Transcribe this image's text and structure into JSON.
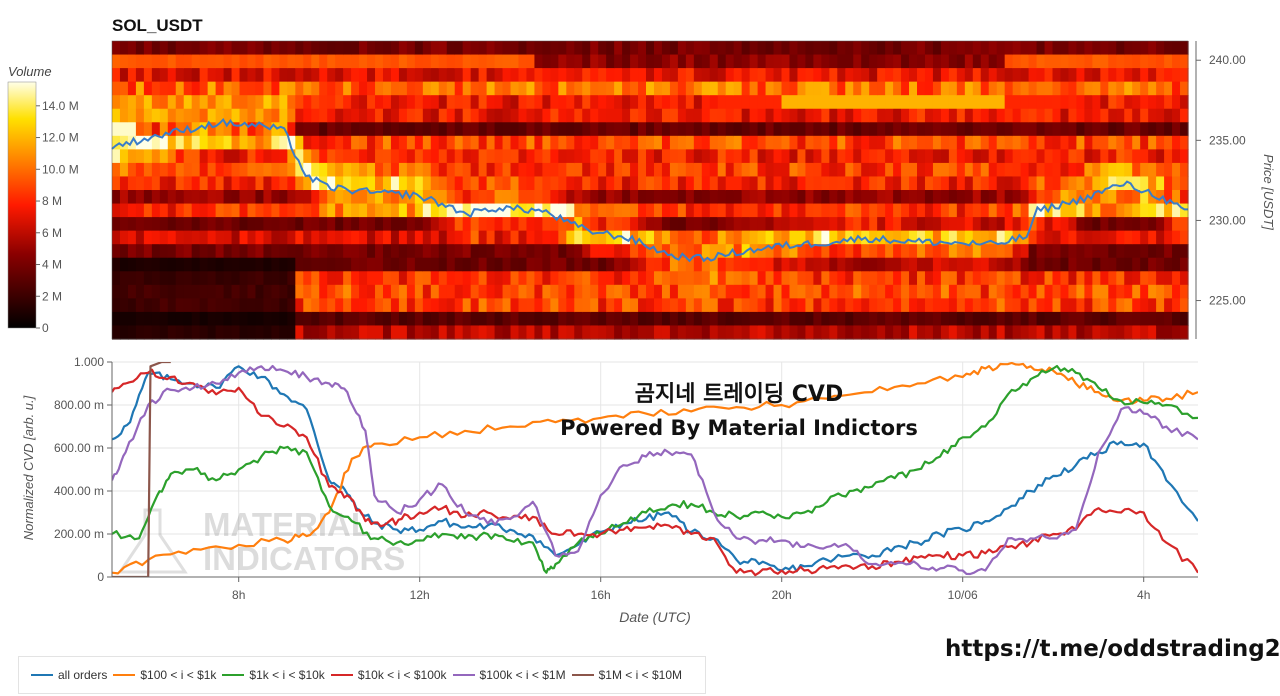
{
  "title": "SOL_USDT",
  "colors": {
    "price_line": "#3a7dc9",
    "heat_low": "#000000",
    "heat_mid": "#ff2000",
    "heat_high": "#ffffe8"
  },
  "footer_link": "https://t.me/oddstrading2",
  "watermark": {
    "line1": "곰지네 트레이딩 CVD",
    "line2": "Powered By Material Indictors",
    "logo_line1": "MATERIAL",
    "logo_line2": "INDICATORS"
  },
  "chart_data": [
    {
      "type": "heatmap",
      "title": "SOL_USDT",
      "colorbar": {
        "label": "Volume",
        "ticks": [
          "0",
          "2 M",
          "4 M",
          "6 M",
          "8 M",
          "10.0 M",
          "12.0 M",
          "14.0 M"
        ],
        "range": [
          0,
          15500000
        ]
      },
      "yaxis": {
        "label": "Price [USDT]",
        "ticks": [
          "225.00",
          "230.00",
          "235.00",
          "240.00"
        ],
        "range": [
          222.6,
          241.2
        ]
      },
      "price_series": {
        "t": [
          0,
          0.05,
          0.1,
          0.14,
          0.16,
          0.18,
          0.2,
          0.22,
          0.25,
          0.28,
          0.3,
          0.33,
          0.36,
          0.4,
          0.44,
          0.48,
          0.52,
          0.55,
          0.58,
          0.62,
          0.66,
          0.7,
          0.74,
          0.78,
          0.82,
          0.85,
          0.86,
          0.9,
          0.94,
          0.97,
          1.0
        ],
        "price": [
          234.6,
          235.4,
          236.1,
          235.9,
          235.6,
          232.8,
          232.1,
          231.9,
          231.7,
          231.6,
          231.2,
          230.4,
          230.8,
          230.6,
          229.4,
          228.9,
          227.8,
          227.6,
          228.0,
          228.4,
          228.6,
          228.9,
          228.7,
          228.6,
          228.5,
          229.0,
          230.6,
          231.3,
          232.3,
          231.6,
          230.5
        ]
      }
    },
    {
      "type": "line",
      "xlabel": "Date (UTC)",
      "ylabel": "Normalized CVD [arb. u.]",
      "x_ticks": [
        "8h",
        "12h",
        "16h",
        "20h",
        "10/06",
        "4h"
      ],
      "x_tick_hours": [
        8,
        12,
        16,
        20,
        24,
        28
      ],
      "xlim": [
        5.2,
        29.2
      ],
      "ylim": [
        0,
        1
      ],
      "y_ticks": [
        "0",
        "200.00 m",
        "400.00 m",
        "600.00 m",
        "800.00 m",
        "1.000"
      ],
      "y_tick_values": [
        0,
        0.2,
        0.4,
        0.6,
        0.8,
        1.0
      ],
      "series": [
        {
          "name": "all orders",
          "color": "#1f77b4",
          "x": [
            5.2,
            5.6,
            6.0,
            6.5,
            7.0,
            7.5,
            8.0,
            8.5,
            9.0,
            9.5,
            10.0,
            10.3,
            10.6,
            11.0,
            11.5,
            12.0,
            12.5,
            13.0,
            13.5,
            14.0,
            14.5,
            15.0,
            15.5,
            16.0,
            16.5,
            17.0,
            17.5,
            18.0,
            18.5,
            19.0,
            19.5,
            20.0,
            20.5,
            21.0,
            21.5,
            22.0,
            22.5,
            23.0,
            23.5,
            24.0,
            24.5,
            25.0,
            25.5,
            26.0,
            26.5,
            27.0,
            27.5,
            28.0,
            28.5,
            29.2
          ],
          "y": [
            0.64,
            0.72,
            0.95,
            0.92,
            0.9,
            0.88,
            0.98,
            0.93,
            0.85,
            0.78,
            0.45,
            0.42,
            0.32,
            0.25,
            0.22,
            0.22,
            0.26,
            0.23,
            0.24,
            0.22,
            0.19,
            0.1,
            0.15,
            0.21,
            0.25,
            0.27,
            0.3,
            0.21,
            0.18,
            0.08,
            0.06,
            0.03,
            0.05,
            0.08,
            0.1,
            0.1,
            0.14,
            0.16,
            0.2,
            0.22,
            0.26,
            0.32,
            0.4,
            0.47,
            0.52,
            0.58,
            0.63,
            0.62,
            0.45,
            0.26
          ]
        },
        {
          "name": "$100 < i < $1k",
          "color": "#ff7f0e",
          "x": [
            5.2,
            6.0,
            7.0,
            8.0,
            9.0,
            9.5,
            10.0,
            10.5,
            11.0,
            12.0,
            13.0,
            14.0,
            15.0,
            16.0,
            17.0,
            18.0,
            19.0,
            20.0,
            21.0,
            22.0,
            23.0,
            24.0,
            24.5,
            25.0,
            25.5,
            26.0,
            26.5,
            27.0,
            27.5,
            28.0,
            28.5,
            29.2
          ],
          "y": [
            0.02,
            0.08,
            0.13,
            0.15,
            0.17,
            0.19,
            0.3,
            0.55,
            0.62,
            0.65,
            0.68,
            0.7,
            0.72,
            0.74,
            0.76,
            0.77,
            0.79,
            0.8,
            0.83,
            0.86,
            0.9,
            0.93,
            0.97,
            0.99,
            0.98,
            0.96,
            0.9,
            0.86,
            0.82,
            0.82,
            0.83,
            0.86
          ]
        },
        {
          "name": "$1k < i < $10k",
          "color": "#2ca02c",
          "x": [
            5.2,
            5.8,
            6.2,
            6.5,
            7.0,
            7.5,
            8.0,
            8.5,
            9.0,
            9.5,
            10.0,
            10.5,
            11.0,
            11.5,
            12.0,
            12.5,
            13.0,
            13.5,
            14.0,
            14.5,
            14.8,
            15.0,
            15.5,
            16.0,
            16.5,
            17.0,
            17.5,
            18.0,
            18.5,
            19.0,
            19.5,
            20.0,
            20.5,
            21.0,
            21.5,
            22.0,
            22.5,
            23.0,
            23.5,
            24.0,
            24.5,
            25.0,
            25.5,
            26.0,
            26.5,
            27.0,
            27.5,
            28.0,
            28.5,
            29.2
          ],
          "y": [
            0.2,
            0.18,
            0.38,
            0.48,
            0.5,
            0.45,
            0.5,
            0.56,
            0.6,
            0.58,
            0.33,
            0.26,
            0.18,
            0.16,
            0.17,
            0.2,
            0.18,
            0.2,
            0.17,
            0.16,
            0.02,
            0.06,
            0.16,
            0.2,
            0.25,
            0.3,
            0.33,
            0.34,
            0.3,
            0.28,
            0.3,
            0.28,
            0.3,
            0.35,
            0.4,
            0.42,
            0.46,
            0.5,
            0.56,
            0.65,
            0.7,
            0.85,
            0.92,
            0.97,
            0.95,
            0.88,
            0.82,
            0.81,
            0.8,
            0.74
          ]
        },
        {
          "name": "$10k < i < $100k",
          "color": "#d62728",
          "x": [
            5.2,
            5.5,
            6.0,
            6.5,
            7.0,
            7.5,
            8.0,
            8.5,
            9.0,
            9.5,
            10.0,
            10.4,
            10.8,
            11.2,
            11.6,
            12.0,
            12.5,
            13.0,
            13.5,
            14.0,
            14.5,
            15.0,
            15.5,
            16.0,
            16.5,
            17.0,
            17.5,
            18.0,
            18.5,
            19.0,
            19.5,
            20.0,
            20.5,
            21.0,
            21.5,
            22.0,
            22.5,
            23.0,
            23.5,
            24.0,
            24.5,
            25.0,
            25.5,
            26.0,
            26.5,
            27.0,
            27.5,
            28.0,
            28.5,
            29.2
          ],
          "y": [
            0.86,
            0.9,
            0.95,
            0.93,
            0.9,
            0.85,
            0.88,
            0.75,
            0.7,
            0.65,
            0.42,
            0.38,
            0.26,
            0.24,
            0.27,
            0.3,
            0.32,
            0.28,
            0.3,
            0.27,
            0.28,
            0.2,
            0.2,
            0.2,
            0.22,
            0.23,
            0.24,
            0.2,
            0.18,
            0.02,
            0.02,
            0.03,
            0.03,
            0.04,
            0.05,
            0.05,
            0.07,
            0.09,
            0.1,
            0.1,
            0.11,
            0.14,
            0.16,
            0.2,
            0.22,
            0.32,
            0.3,
            0.3,
            0.16,
            0.02
          ]
        },
        {
          "name": "$100k < i < $1M",
          "color": "#9467bd",
          "x": [
            5.2,
            5.5,
            6.0,
            6.5,
            7.0,
            7.5,
            8.0,
            8.5,
            9.0,
            9.5,
            10.0,
            10.4,
            10.8,
            11.0,
            11.5,
            12.0,
            12.5,
            13.0,
            13.5,
            14.0,
            14.5,
            15.0,
            15.5,
            16.0,
            16.5,
            17.0,
            17.5,
            18.0,
            18.5,
            19.0,
            19.5,
            20.0,
            20.5,
            21.0,
            21.5,
            22.0,
            22.5,
            23.0,
            23.5,
            24.0,
            24.5,
            25.0,
            25.5,
            26.0,
            26.5,
            27.0,
            27.5,
            28.0,
            28.5,
            29.2
          ],
          "y": [
            0.45,
            0.58,
            0.8,
            0.87,
            0.88,
            0.9,
            0.95,
            0.98,
            0.96,
            0.93,
            0.9,
            0.86,
            0.68,
            0.38,
            0.3,
            0.36,
            0.43,
            0.3,
            0.25,
            0.27,
            0.35,
            0.1,
            0.12,
            0.38,
            0.52,
            0.56,
            0.58,
            0.57,
            0.3,
            0.18,
            0.17,
            0.17,
            0.14,
            0.14,
            0.14,
            0.06,
            0.06,
            0.06,
            0.04,
            0.03,
            0.03,
            0.18,
            0.18,
            0.18,
            0.22,
            0.58,
            0.78,
            0.76,
            0.7,
            0.64
          ]
        },
        {
          "name": "$1M < i < $10M",
          "color": "#8c564b",
          "x": [
            5.2,
            6.0,
            6.05,
            6.3,
            6.5
          ],
          "y": [
            0.0,
            0.0,
            0.98,
            1.0,
            1.0
          ]
        }
      ]
    }
  ]
}
